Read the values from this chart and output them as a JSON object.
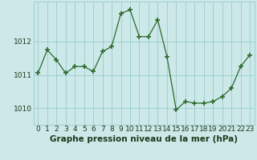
{
  "x": [
    0,
    1,
    2,
    3,
    4,
    5,
    6,
    7,
    8,
    9,
    10,
    11,
    12,
    13,
    14,
    15,
    16,
    17,
    18,
    19,
    20,
    21,
    22,
    23
  ],
  "y": [
    1011.05,
    1011.75,
    1011.45,
    1011.05,
    1011.25,
    1011.25,
    1011.1,
    1011.7,
    1011.85,
    1012.85,
    1012.95,
    1012.15,
    1012.15,
    1012.65,
    1011.55,
    1009.95,
    1010.2,
    1010.15,
    1010.15,
    1010.2,
    1010.35,
    1010.6,
    1011.25,
    1011.6
  ],
  "line_color": "#2d6a2d",
  "marker": "+",
  "marker_size": 4,
  "bg_color": "#cce8e8",
  "grid_color": "#99cccc",
  "text_color": "#1a3a1a",
  "yticks": [
    1010,
    1011,
    1012
  ],
  "xticks": [
    0,
    1,
    2,
    3,
    4,
    5,
    6,
    7,
    8,
    9,
    10,
    11,
    12,
    13,
    14,
    15,
    16,
    17,
    18,
    19,
    20,
    21,
    22,
    23
  ],
  "ylim": [
    1009.5,
    1013.2
  ],
  "xlim": [
    -0.5,
    23.5
  ],
  "tick_fontsize": 6.5,
  "title": "Graphe pression niveau de la mer (hPa)",
  "title_fontsize": 7.5
}
